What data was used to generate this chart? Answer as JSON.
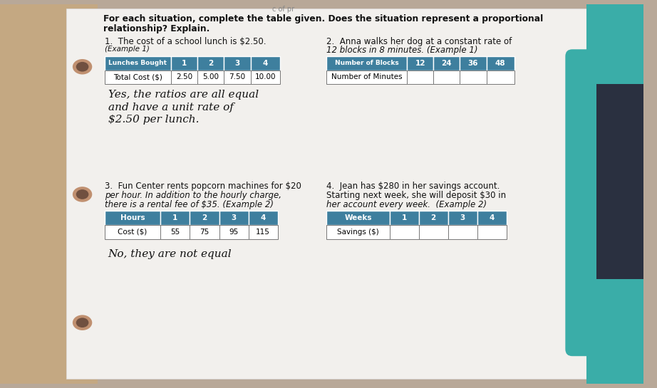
{
  "bg_left_color": "#c8a882",
  "bg_right_color": "#d0ccc8",
  "paper_color": "#f0eeeb",
  "teal_color": "#3aada8",
  "header_line1": "For each situation, complete the table given. Does the situation represent a proportional",
  "header_line2": "relationship? Explain.",
  "prob1_line1": "1.  The cost of a school lunch is $2.50.",
  "prob1_line2": "(Example 1)",
  "prob2_line1": "2.  Anna walks her dog at a constant rate of",
  "prob2_line2": "12 blocks in 8 minutes. (Example 1)",
  "prob3_line1": "3.  Fun Center rents popcorn machines for $20",
  "prob3_line2": "per hour. In addition to the hourly charge,",
  "prob3_line3": "there is a rental fee of $35. (Example 2)",
  "prob4_line1": "4.  Jean has $280 in her savings account.",
  "prob4_line2": "Starting next week, she will deposit $30 in",
  "prob4_line3": "her account every week.  (Example 2)",
  "table1_h": [
    "Lunches Bought",
    "1",
    "2",
    "3",
    "4"
  ],
  "table1_d": [
    "Total Cost ($)",
    "2.50",
    "5.00",
    "7.50",
    "10.00"
  ],
  "table2_h": [
    "Number of Blocks",
    "12",
    "24",
    "36",
    "48"
  ],
  "table2_d": [
    "Number of Minutes",
    "",
    "",
    "",
    ""
  ],
  "table3_h": [
    "Hours",
    "1",
    "2",
    "3",
    "4"
  ],
  "table3_d": [
    "Cost ($)",
    "55",
    "75",
    "95",
    "115"
  ],
  "table4_h": [
    "Weeks",
    "1",
    "2",
    "3",
    "4"
  ],
  "table4_d": [
    "Savings ($)",
    "",
    "",
    "",
    ""
  ],
  "ans1_l1": "Yes, the ratios are all equal",
  "ans1_l2": "and have a unit rate of",
  "ans1_l3": "$2.50 per lunch.",
  "ans3_l1": "No, they are not equal",
  "table_hdr_color": "#3a7f9e",
  "table_hdr_color2": "#4a8fa8",
  "hole_color": "#c09070",
  "hole_color2": "#705040"
}
